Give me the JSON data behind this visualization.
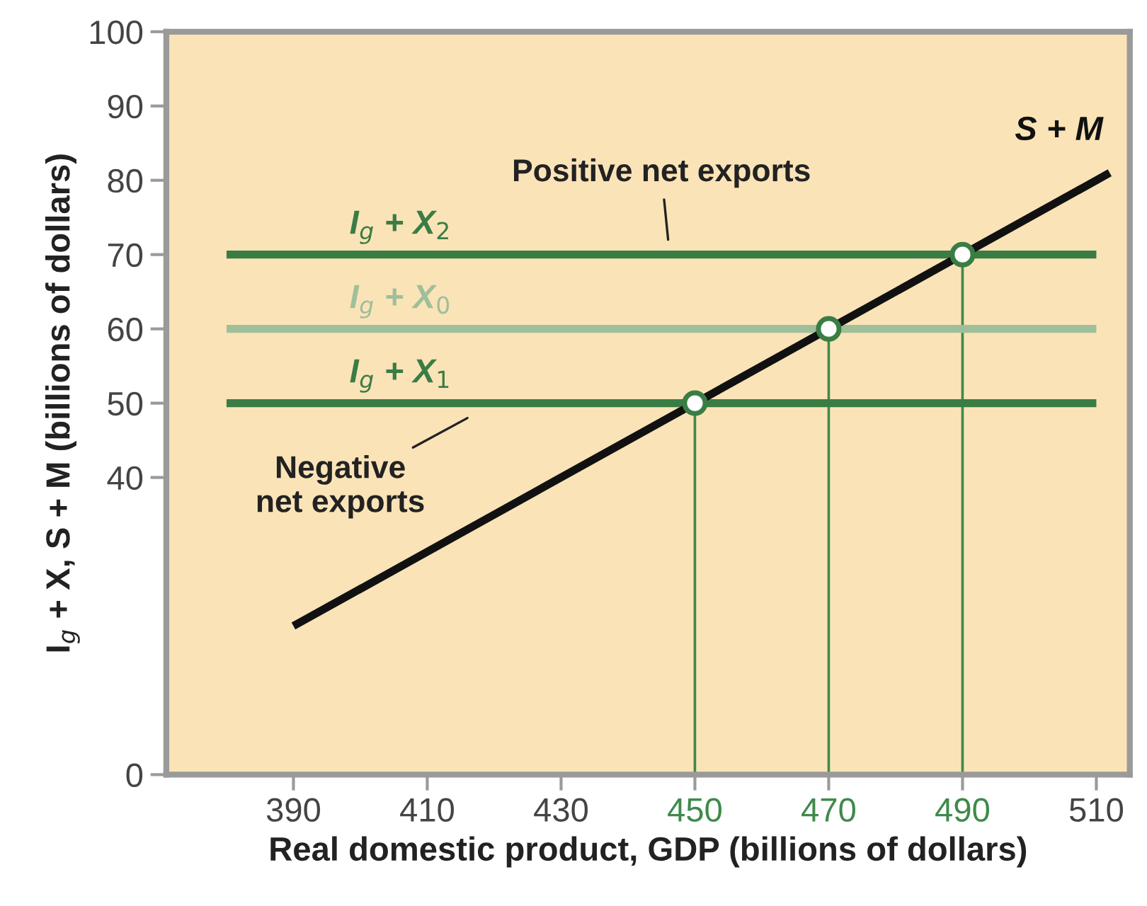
{
  "chart_data": {
    "type": "line",
    "xlabel": "Real domestic product, GDP (billions of dollars)",
    "ylabel": "I$_{g}$ + X, S + M (billions of dollars)",
    "xlim": [
      371,
      515
    ],
    "xticks": [
      390,
      410,
      430,
      450,
      470,
      490,
      510
    ],
    "ylim": [
      0,
      100
    ],
    "yticks": [
      0,
      40,
      50,
      60,
      70,
      80,
      90,
      100
    ],
    "grid": false,
    "legend": false,
    "marker": "none",
    "line_style": "solid",
    "series": [
      {
        "color": "#3f8a4a",
        "x": [
          450,
          450
        ],
        "values": [
          0,
          50
        ]
      },
      {
        "color": "#3f8a4a",
        "x": [
          470,
          470
        ],
        "values": [
          0,
          60
        ]
      },
      {
        "color": "#3f8a4a",
        "x": [
          490,
          490
        ],
        "values": [
          0,
          70
        ]
      },
      {
        "name": "I$_{g}$ + X$_{2}$",
        "color": "#3a7d44",
        "x": [
          380,
          510
        ],
        "values": [
          70,
          70
        ]
      },
      {
        "name": "I$_{g}$ + X$_{0}$",
        "color": "#9fbf9a",
        "x": [
          380,
          510
        ],
        "values": [
          60,
          60
        ]
      },
      {
        "name": "I$_{g}$ + X$_{1}$",
        "color": "#3a7d44",
        "x": [
          380,
          510
        ],
        "values": [
          50,
          50
        ]
      },
      {
        "name": "S + M",
        "color": "#111111",
        "x": [
          390,
          512
        ],
        "values": [
          20,
          81
        ]
      },
      {
        "type": "scatter",
        "color": "#3a7d44",
        "marker": "circle",
        "x": [
          450,
          470,
          490
        ],
        "values": [
          50,
          60,
          70
        ]
      }
    ],
    "annotations": [
      {
        "text": "Positive net exports",
        "x": 443,
        "y": 70
      },
      {
        "text": "Negative\nnet exports",
        "x": 419,
        "y": 50
      }
    ]
  }
}
